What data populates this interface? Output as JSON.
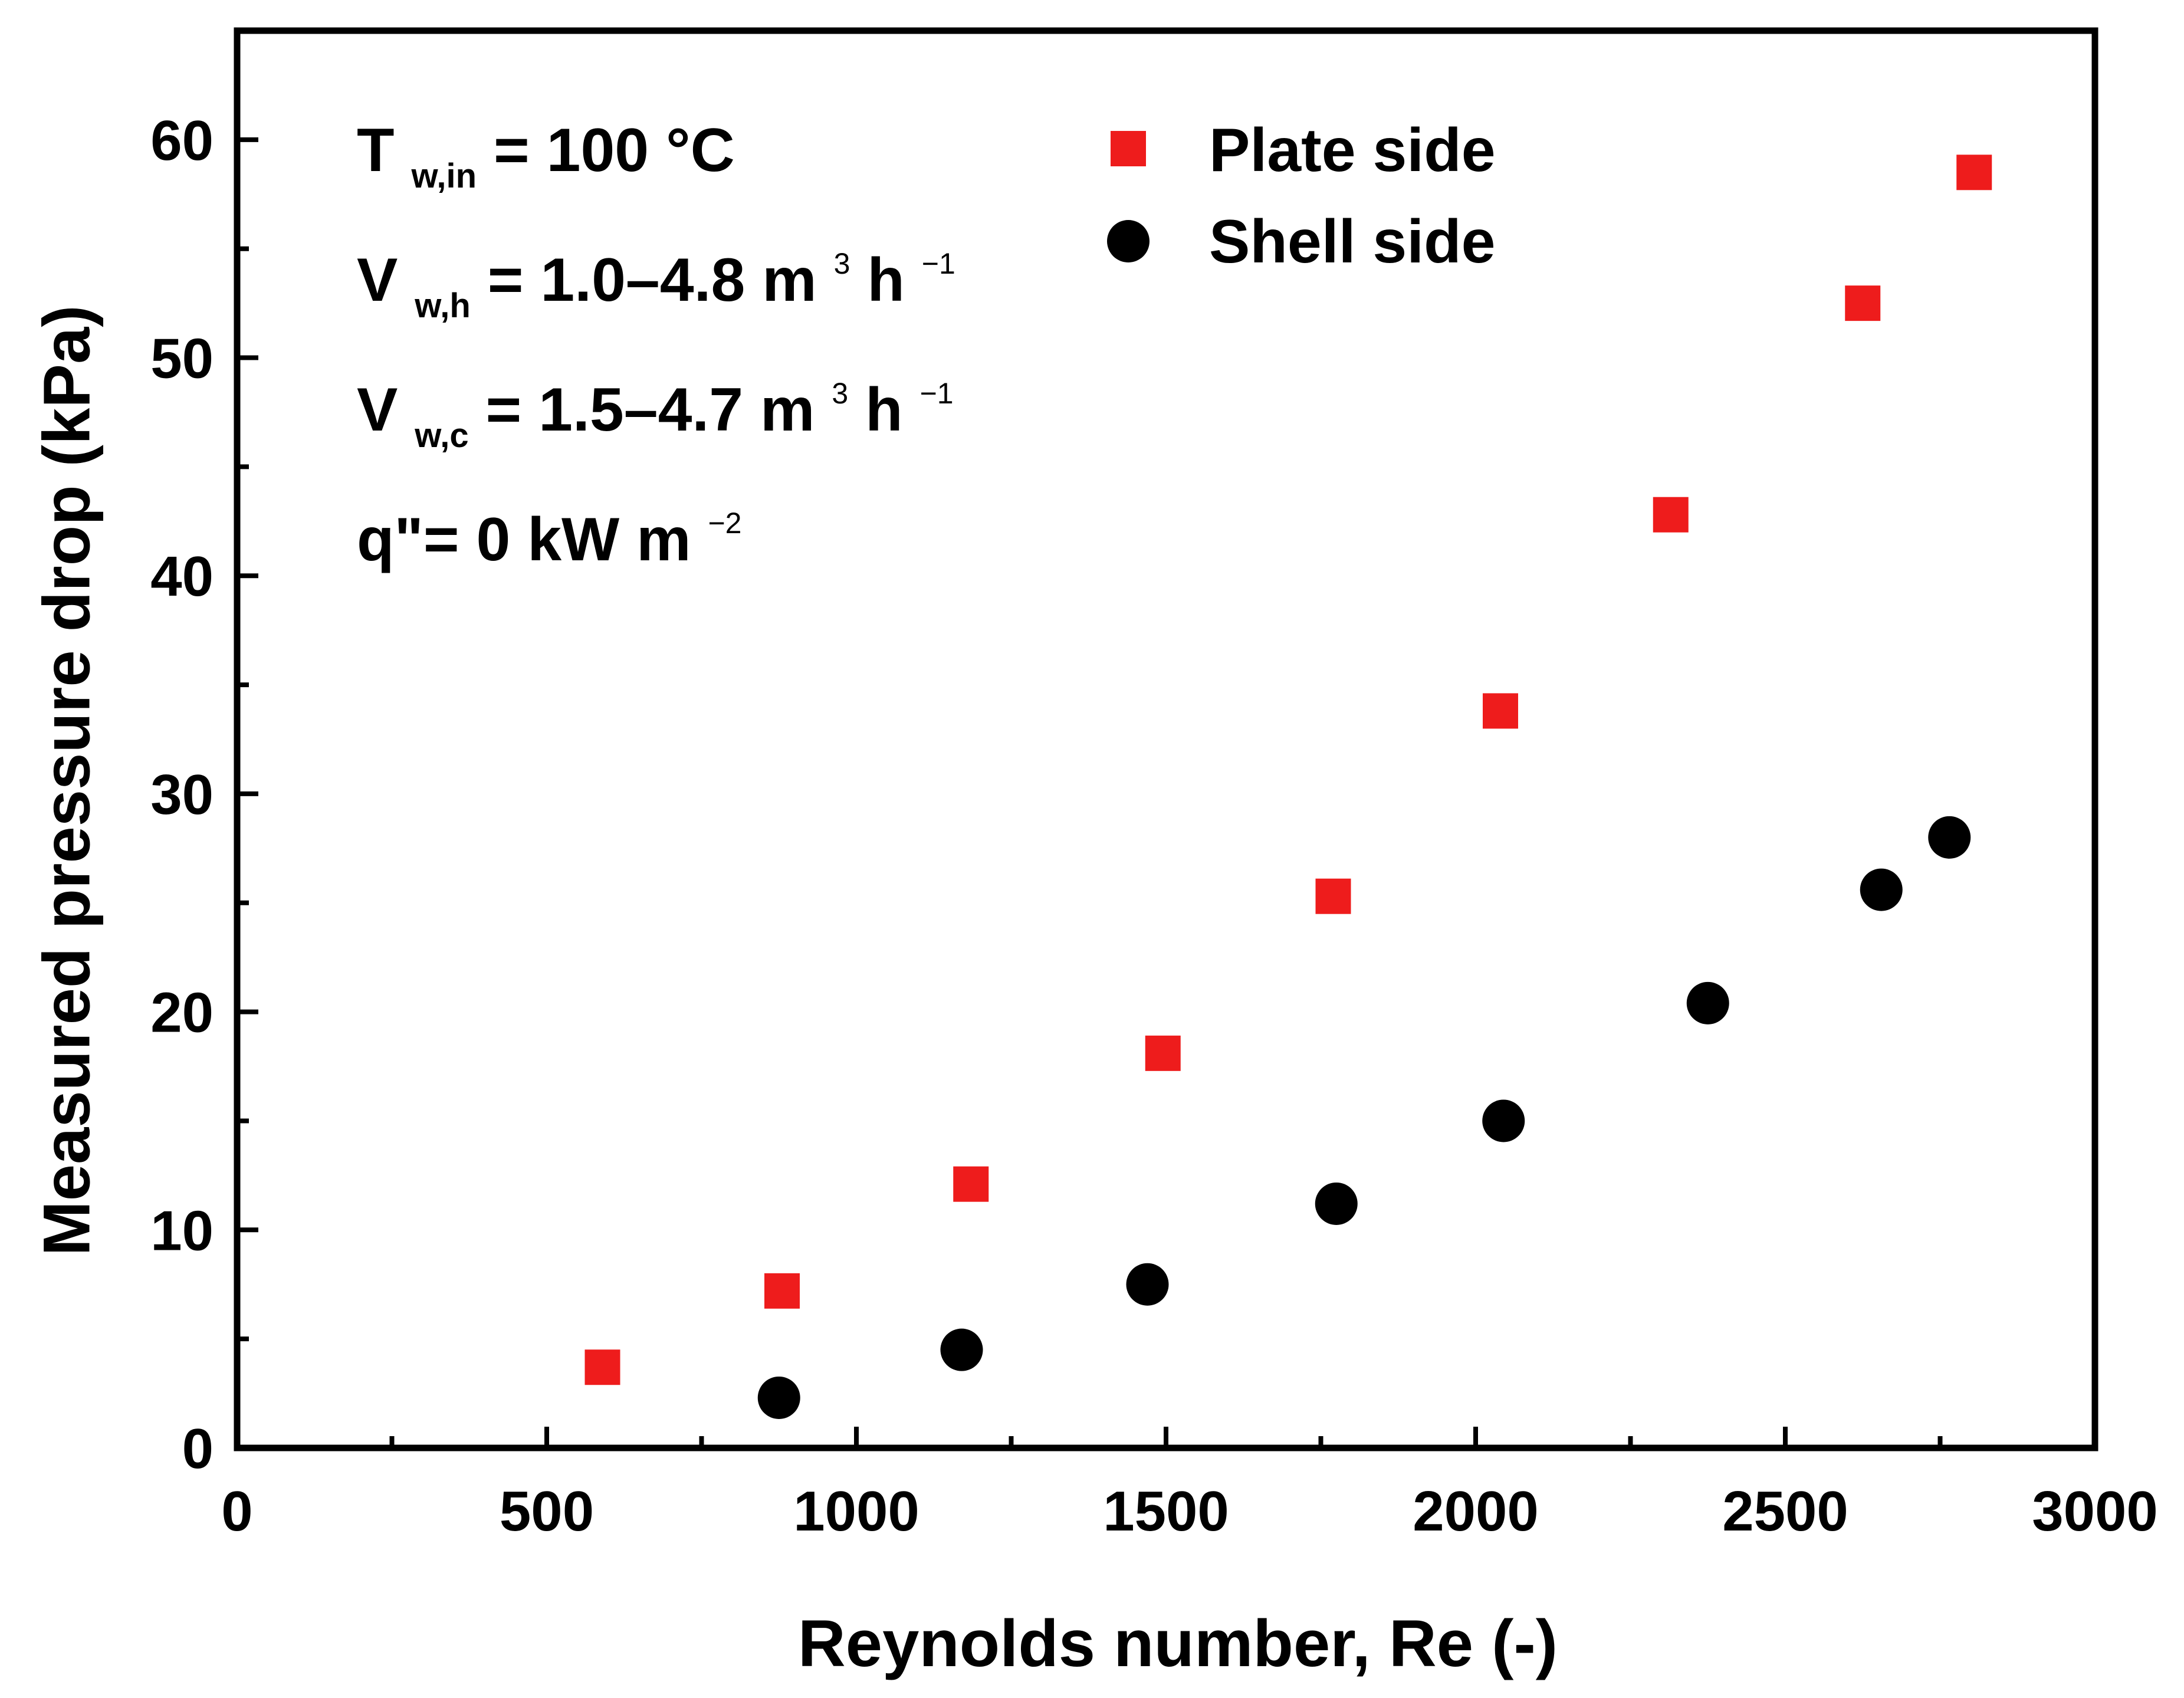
{
  "chart_data": {
    "type": "scatter",
    "title": "",
    "xlabel": "Reynolds number, Re (-)",
    "ylabel": "Measured pressure drop (kPa)",
    "xlim": [
      0,
      3000
    ],
    "ylim": [
      0,
      65
    ],
    "x_ticks": [
      0,
      500,
      1000,
      1500,
      2000,
      2500,
      3000
    ],
    "y_ticks": [
      0,
      10,
      20,
      30,
      40,
      50,
      60
    ],
    "x_tick_labels": [
      "0",
      "500",
      "1000",
      "1500",
      "2000",
      "2500",
      "3000"
    ],
    "y_tick_labels": [
      "0",
      "10",
      "20",
      "30",
      "40",
      "50",
      "60"
    ],
    "grid": false,
    "legend_position": "top-center",
    "series": [
      {
        "name": "Plate side",
        "marker": "square",
        "color": "#ee1c1c",
        "x": [
          590,
          880,
          1185,
          1495,
          1770,
          2040,
          2315,
          2625,
          2805
        ],
        "y": [
          3.7,
          7.2,
          12.1,
          18.1,
          25.3,
          33.8,
          42.8,
          52.5,
          58.5
        ]
      },
      {
        "name": "Shell side",
        "marker": "circle",
        "color": "#000000",
        "x": [
          875,
          1170,
          1470,
          1775,
          2045,
          2375,
          2655,
          2765
        ],
        "y": [
          2.3,
          4.5,
          7.5,
          11.2,
          15.0,
          20.4,
          25.6,
          28.0
        ]
      }
    ],
    "annotations": {
      "line1": {
        "main": "T",
        "sub": "w,in",
        "rest": " = 100 °C"
      },
      "line2": {
        "main": "V",
        "sub": "w,h",
        "rest": "= 1.0–4.8 m",
        "sup1": "3",
        "rest2": " h",
        "sup2": "−1"
      },
      "line3": {
        "main": "V",
        "sub": "w,c",
        "rest": "= 1.5–4.7 m",
        "sup1": "3",
        "rest2": " h",
        "sup2": "−1"
      },
      "line4": {
        "main": "q\"= 0 kW m",
        "sup": "−2"
      }
    }
  }
}
